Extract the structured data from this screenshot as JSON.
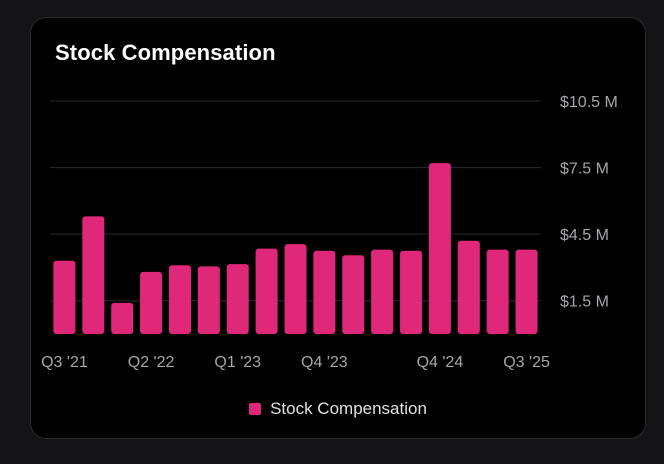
{
  "card": {
    "title": "Stock Compensation"
  },
  "colors": {
    "bar": "#e0287a",
    "grid": "#2b2b2e",
    "background": "#000000"
  },
  "chart_data": {
    "type": "bar",
    "title": "Stock Compensation",
    "xlabel": "",
    "ylabel": "",
    "ylim": [
      0,
      10.5
    ],
    "y_unit": "M",
    "y_ticks": [
      {
        "value": 1.5,
        "label": "$1.5 M"
      },
      {
        "value": 4.5,
        "label": "$4.5 M"
      },
      {
        "value": 7.5,
        "label": "$7.5 M"
      },
      {
        "value": 10.5,
        "label": "$10.5 M"
      }
    ],
    "categories": [
      "Q3 '21",
      "Q4 '21",
      "Q1 '22",
      "Q2 '22",
      "Q3 '22",
      "Q4 '22",
      "Q1 '23",
      "Q2 '23",
      "Q3 '23",
      "Q4 '23",
      "Q1 '24",
      "Q2 '24",
      "Q3 '24",
      "Q4 '24",
      "Q1 '25",
      "Q2 '25",
      "Q3 '25"
    ],
    "x_tick_labels": [
      "Q3 '21",
      "Q2 '22",
      "Q1 '23",
      "Q4 '23",
      "Q4 '24",
      "Q3 '25"
    ],
    "series": [
      {
        "name": "Stock Compensation",
        "values": [
          3.3,
          5.3,
          1.4,
          2.8,
          3.1,
          3.05,
          3.15,
          3.85,
          4.05,
          3.75,
          3.55,
          3.8,
          3.75,
          7.7,
          4.2,
          3.8,
          3.8
        ]
      }
    ],
    "grid": true,
    "legend": "bottom-center"
  }
}
